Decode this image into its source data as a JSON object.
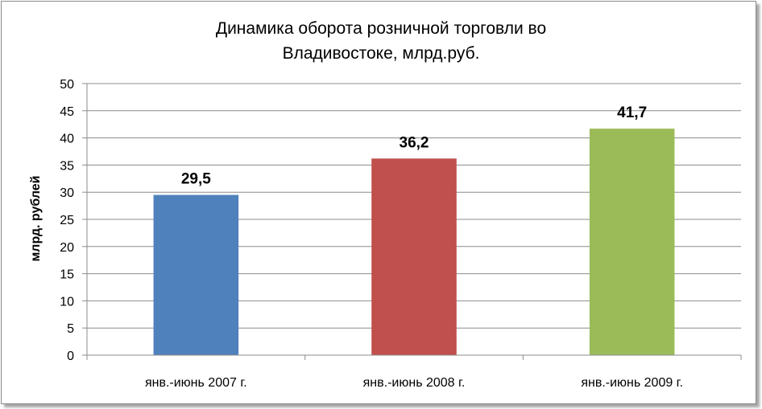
{
  "chart_data": {
    "type": "bar",
    "title_lines": [
      "Динамика оборота розничной торговли во",
      "Владивостоке, млрд.руб."
    ],
    "ylabel": "млрд. рублей",
    "xlabel": "",
    "categories": [
      "янв.-июнь 2007 г.",
      "янв.-июнь 2008 г.",
      "янв.-июнь 2009 г."
    ],
    "values": [
      29.5,
      36.2,
      41.7
    ],
    "data_labels": [
      "29,5",
      "36,2",
      "41,7"
    ],
    "colors": [
      "#4F81BD",
      "#C0504D",
      "#9BBB59"
    ],
    "ylim": [
      0,
      50
    ],
    "yticks": [
      0,
      5,
      10,
      15,
      20,
      25,
      30,
      35,
      40,
      45,
      50
    ],
    "grid": true,
    "legend": "none"
  }
}
